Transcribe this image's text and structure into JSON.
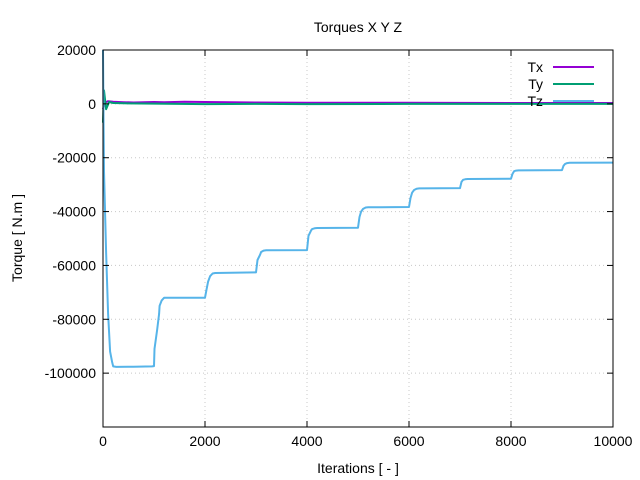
{
  "chart_data": {
    "type": "line",
    "title": "Torques X Y Z",
    "xlabel": "Iterations [ - ]",
    "ylabel": "Torque [ N.m ]",
    "xlim": [
      0,
      10000
    ],
    "ylim": [
      -120000,
      20000
    ],
    "xticks": [
      0,
      2000,
      4000,
      6000,
      8000,
      10000
    ],
    "yticks": [
      20000,
      0,
      -20000,
      -40000,
      -60000,
      -80000,
      -100000
    ],
    "grid": true,
    "legend_position": "top-right",
    "series": [
      {
        "name": "Tx",
        "color": "#9400d3",
        "x": [
          0,
          40,
          100,
          200,
          400,
          600,
          1000,
          1200,
          1600,
          2000,
          3000,
          4000,
          6000,
          8000,
          10000
        ],
        "y": [
          -2000,
          500,
          1000,
          800,
          600,
          500,
          700,
          600,
          800,
          700,
          500,
          400,
          400,
          300,
          300
        ]
      },
      {
        "name": "Ty",
        "color": "#009e73",
        "x": [
          0,
          20,
          60,
          120,
          200,
          400,
          1000,
          2000,
          3000,
          4000,
          6000,
          8000,
          10000
        ],
        "y": [
          -7000,
          5000,
          -2000,
          700,
          300,
          200,
          100,
          -100,
          0,
          -100,
          0,
          0,
          0
        ]
      },
      {
        "name": "Tz",
        "color": "#56b4e9",
        "x": [
          0,
          10,
          20,
          60,
          100,
          140,
          180,
          200,
          260,
          600,
          960,
          1000,
          1010,
          1060,
          1100,
          1110,
          1150,
          1200,
          2000,
          2030,
          2060,
          2100,
          2150,
          2200,
          3000,
          3030,
          3080,
          3100,
          3150,
          3200,
          4000,
          4030,
          4080,
          4100,
          4150,
          4200,
          5000,
          5030,
          5060,
          5100,
          5150,
          5200,
          6000,
          6030,
          6060,
          6100,
          6150,
          6200,
          7000,
          7030,
          7060,
          7100,
          7150,
          8000,
          8030,
          8060,
          8100,
          8150,
          9000,
          9030,
          9060,
          9100,
          9150,
          10000
        ],
        "y": [
          20000,
          -5000,
          -25000,
          -55000,
          -78000,
          -92000,
          -96000,
          -97500,
          -97700,
          -97600,
          -97500,
          -97400,
          -91000,
          -84000,
          -78000,
          -75000,
          -73000,
          -72000,
          -72000,
          -69000,
          -66000,
          -64000,
          -63000,
          -62800,
          -62600,
          -58000,
          -56000,
          -55000,
          -54500,
          -54400,
          -54300,
          -49000,
          -47000,
          -46500,
          -46200,
          -46100,
          -46000,
          -42000,
          -40000,
          -39000,
          -38500,
          -38400,
          -38300,
          -35000,
          -33000,
          -32000,
          -31500,
          -31400,
          -31300,
          -29000,
          -28200,
          -28000,
          -27900,
          -27800,
          -26000,
          -25000,
          -24800,
          -24700,
          -24600,
          -23000,
          -22300,
          -22000,
          -21900,
          -21800
        ]
      }
    ]
  }
}
